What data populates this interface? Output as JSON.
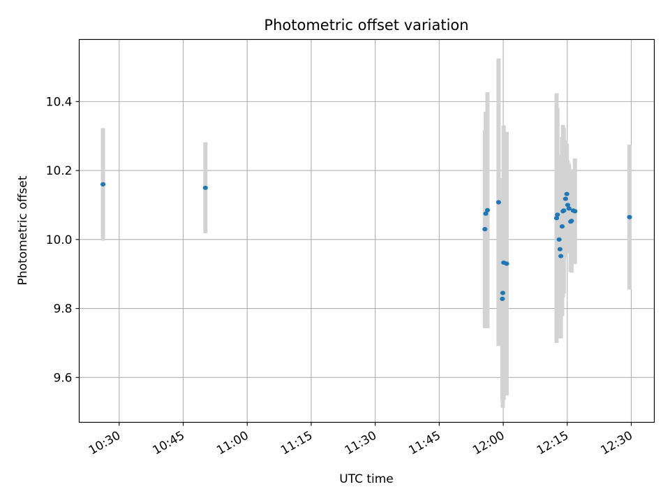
{
  "chart_data": {
    "type": "scatter",
    "title": "Photometric offset variation",
    "xlabel": "UTC time",
    "ylabel": "Photometric offset",
    "x_ticks": [
      "10:30",
      "10:45",
      "11:00",
      "11:15",
      "11:30",
      "11:45",
      "12:00",
      "12:15",
      "12:30"
    ],
    "y_ticks": [
      "9.6",
      "9.8",
      "10.0",
      "10.2",
      "10.4"
    ],
    "xlim": [
      "10:20:38",
      "12:35:24"
    ],
    "ylim": [
      9.47,
      10.58
    ],
    "grid": true,
    "colors": {
      "points": "#1f77b4",
      "errorbars": "#d3d3d3"
    },
    "series": [
      {
        "points": [
          {
            "x": "10:26:12",
            "y": 10.16,
            "yerr": 0.163
          },
          {
            "x": "10:50:12",
            "y": 10.15,
            "yerr": 0.132
          },
          {
            "x": "11:55:42",
            "y": 10.03,
            "yerr": 0.287
          },
          {
            "x": "11:55:54",
            "y": 10.075,
            "yerr": 0.295
          },
          {
            "x": "11:56:18",
            "y": 10.085,
            "yerr": 0.342
          },
          {
            "x": "11:58:54",
            "y": 10.108,
            "yerr": 0.417
          },
          {
            "x": "11:59:48",
            "y": 9.828,
            "yerr": 0.294
          },
          {
            "x": "11:59:54",
            "y": 9.845,
            "yerr": 0.333
          },
          {
            "x": "12:00:06",
            "y": 9.933,
            "yerr": 0.398
          },
          {
            "x": "12:00:48",
            "y": 9.93,
            "yerr": 0.382
          },
          {
            "x": "12:12:30",
            "y": 10.062,
            "yerr": 0.362
          },
          {
            "x": "12:12:42",
            "y": 10.072,
            "yerr": 0.31
          },
          {
            "x": "12:13:06",
            "y": 10.0,
            "yerr": 0.246
          },
          {
            "x": "12:13:18",
            "y": 9.972,
            "yerr": 0.257
          },
          {
            "x": "12:13:30",
            "y": 9.952,
            "yerr": 0.239
          },
          {
            "x": "12:13:48",
            "y": 10.038,
            "yerr": 0.26
          },
          {
            "x": "12:14:00",
            "y": 10.082,
            "yerr": 0.25
          },
          {
            "x": "12:14:12",
            "y": 10.084,
            "yerr": 0.24
          },
          {
            "x": "12:14:36",
            "y": 10.118,
            "yerr": 0.17
          },
          {
            "x": "12:14:54",
            "y": 10.132,
            "yerr": 0.146
          },
          {
            "x": "12:15:06",
            "y": 10.1,
            "yerr": 0.13
          },
          {
            "x": "12:15:24",
            "y": 10.09,
            "yerr": 0.13
          },
          {
            "x": "12:15:48",
            "y": 10.052,
            "yerr": 0.146
          },
          {
            "x": "12:16:00",
            "y": 10.054,
            "yerr": 0.15
          },
          {
            "x": "12:16:24",
            "y": 10.084,
            "yerr": 0.12
          },
          {
            "x": "12:16:48",
            "y": 10.082,
            "yerr": 0.153
          },
          {
            "x": "12:29:36",
            "y": 10.065,
            "yerr": 0.21
          }
        ]
      }
    ]
  }
}
